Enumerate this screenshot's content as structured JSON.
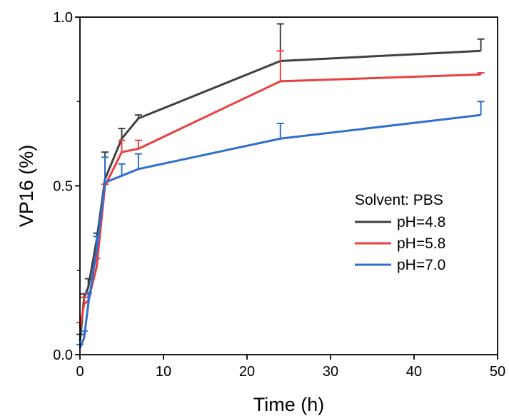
{
  "chart_data": {
    "type": "line",
    "xlabel": "Time (h)",
    "ylabel": "VP16 (%)",
    "xlim": [
      0,
      50
    ],
    "ylim": [
      0,
      1.0
    ],
    "xticks": [
      "0",
      "10",
      "20",
      "30",
      "40",
      "50"
    ],
    "yticks": [
      "0.0",
      "0.5",
      "1.0"
    ],
    "x": [
      0,
      0.5,
      1,
      2,
      3,
      5,
      7,
      24,
      48
    ],
    "legend": {
      "title": "Solvent: PBS",
      "position": "right-middle"
    },
    "series": [
      {
        "name": "pH=4.8",
        "color": "#404040",
        "values": [
          0.04,
          0.17,
          0.2,
          0.34,
          0.52,
          0.64,
          0.7,
          0.87,
          0.9
        ],
        "errors": [
          0.02,
          0.01,
          0.025,
          0.02,
          0.08,
          0.03,
          0.01,
          0.11,
          0.035
        ]
      },
      {
        "name": "pH=5.8",
        "color": "#e84040",
        "values": [
          0.08,
          0.15,
          0.16,
          0.26,
          0.5,
          0.6,
          0.61,
          0.81,
          0.83
        ],
        "errors": [
          0.015,
          0.02,
          0.02,
          0.025,
          0.005,
          0.035,
          0.025,
          0.09,
          0.005
        ]
      },
      {
        "name": "pH=7.0",
        "color": "#2f6fd0",
        "values": [
          0.02,
          0.05,
          0.15,
          0.31,
          0.51,
          0.53,
          0.55,
          0.64,
          0.71
        ],
        "errors": [
          0.01,
          0.02,
          0.035,
          0.04,
          0.075,
          0.035,
          0.045,
          0.045,
          0.04
        ]
      }
    ]
  }
}
